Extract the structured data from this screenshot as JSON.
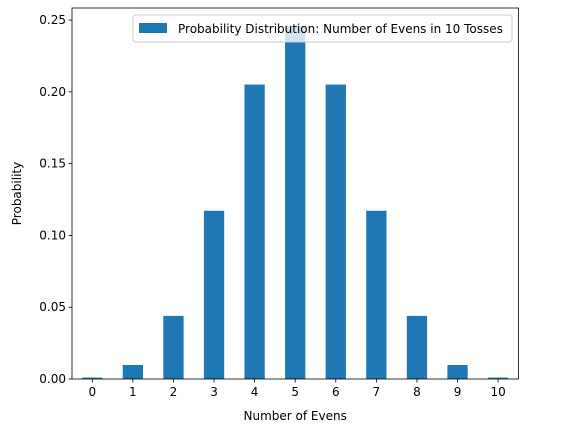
{
  "chart_data": {
    "type": "bar",
    "categories": [
      "0",
      "1",
      "2",
      "3",
      "4",
      "5",
      "6",
      "7",
      "8",
      "9",
      "10"
    ],
    "values": [
      0.000977,
      0.009766,
      0.043945,
      0.117188,
      0.205078,
      0.246094,
      0.205078,
      0.117188,
      0.043945,
      0.009766,
      0.000977
    ],
    "series": [
      {
        "name": "Probability Distribution: Number of Evens in 10 Tosses",
        "color": "#1f77b4"
      }
    ],
    "xlabel": "Number of Evens",
    "ylabel": "Probability",
    "ylim": [
      0,
      0.258398
    ],
    "yticks": [
      0.0,
      0.05,
      0.1,
      0.15,
      0.2,
      0.25
    ],
    "ytick_labels": [
      "0.00",
      "0.05",
      "0.10",
      "0.15",
      "0.20",
      "0.25"
    ],
    "grid": false,
    "legend_position": "upper right"
  }
}
